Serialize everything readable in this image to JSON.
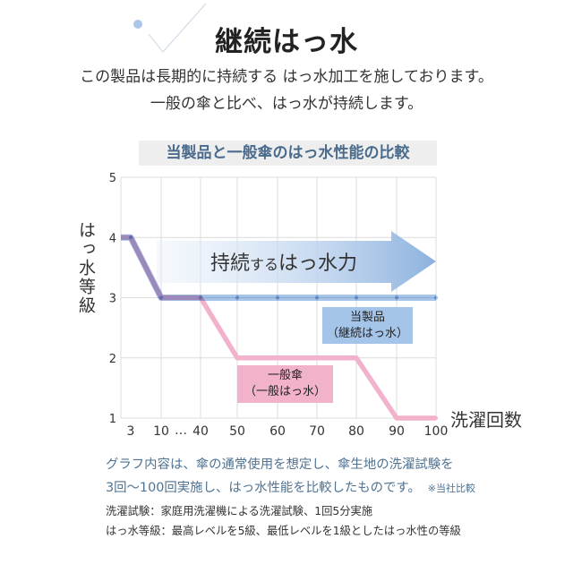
{
  "decor": {
    "dot_color": "#aec6e8",
    "line_color": "#cbd7e4"
  },
  "header": {
    "title": "継続はっ水",
    "lead_1": "この製品は長期的に持続する はっ水加工を施しております。",
    "lead_2": "一般の傘と比べ、はっ水が持続します。"
  },
  "chart_data": {
    "type": "line",
    "title": "当製品と一般傘のはっ水性能の比較",
    "xlabel": "洗濯回数",
    "ylabel": "はっ水等級",
    "x": [
      3,
      10,
      40,
      50,
      60,
      70,
      80,
      90,
      100
    ],
    "x_break_label": "…",
    "yticks": [
      1,
      2,
      3,
      4,
      5
    ],
    "ylim": [
      1,
      5
    ],
    "grid": true,
    "series": [
      {
        "name": "当製品",
        "sub_label": "（継続はっ水）",
        "color": "#a4c4e9",
        "values": [
          4,
          3,
          3,
          3,
          3,
          3,
          3,
          3,
          3
        ]
      },
      {
        "name": "一般傘",
        "sub_label": "（一般はっ水）",
        "color": "#f2b2cc",
        "values": [
          4,
          3,
          3,
          2,
          2,
          2,
          2,
          1,
          1
        ]
      }
    ],
    "annotation": {
      "arrow_text_1": "持続",
      "arrow_text_2": "する",
      "arrow_text_3": "はっ水力",
      "arrow_color": "#8db2de"
    }
  },
  "notes": {
    "desc_1": "グラフ内容は、傘の通常使用を想定し、傘生地の洗濯試験を",
    "desc_2": "3回～100回実施し、はっ水性能を比較したものです。",
    "desc_remark": "※当社比較",
    "wash_test": "洗濯試験：家庭用洗濯機による洗濯試験、1回5分実施",
    "grade_def": "はっ水等級：最高レベルを5級、最低レベルを1級としたはっ水性の等級"
  }
}
